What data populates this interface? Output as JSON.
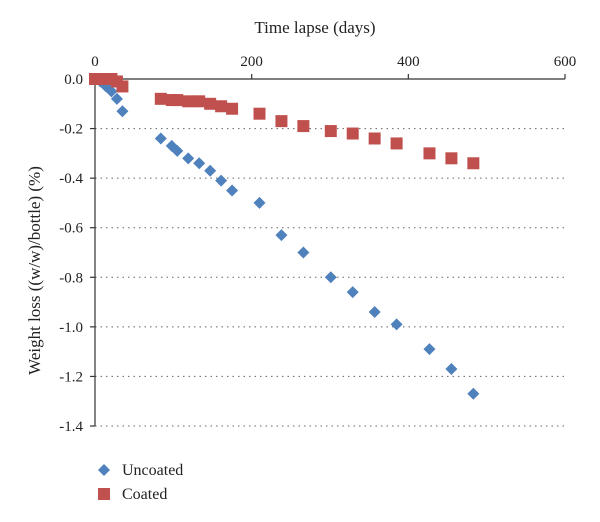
{
  "chart_data": {
    "type": "scatter",
    "xlabel": "Time lapse (days)",
    "ylabel": "Weight loss ((w/w)/bottle) (%)",
    "xlim": [
      0,
      600
    ],
    "ylim": [
      -1.4,
      0
    ],
    "x_ticks": [
      "0",
      "200",
      "400",
      "600"
    ],
    "y_ticks": [
      "0.0",
      "-0.2",
      "-0.4",
      "-0.6",
      "-0.8",
      "-1.0",
      "-1.2",
      "-1.4"
    ],
    "x_axis_position": "top",
    "grid": "horizontal dotted",
    "legend_position": "bottom-left",
    "series": [
      {
        "name": "Uncoated",
        "marker": "diamond",
        "color": "#4f81bd",
        "points": [
          [
            0,
            0.0
          ],
          [
            7,
            -0.01
          ],
          [
            14,
            -0.03
          ],
          [
            21,
            -0.05
          ],
          [
            28,
            -0.08
          ],
          [
            35,
            -0.13
          ],
          [
            84,
            -0.24
          ],
          [
            98,
            -0.27
          ],
          [
            105,
            -0.29
          ],
          [
            119,
            -0.32
          ],
          [
            133,
            -0.34
          ],
          [
            147,
            -0.37
          ],
          [
            161,
            -0.41
          ],
          [
            175,
            -0.45
          ],
          [
            210,
            -0.5
          ],
          [
            238,
            -0.63
          ],
          [
            266,
            -0.7
          ],
          [
            301,
            -0.8
          ],
          [
            329,
            -0.86
          ],
          [
            357,
            -0.94
          ],
          [
            385,
            -0.99
          ],
          [
            427,
            -1.09
          ],
          [
            455,
            -1.17
          ],
          [
            483,
            -1.27
          ]
        ]
      },
      {
        "name": "Coated",
        "marker": "square",
        "color": "#c0504d",
        "points": [
          [
            0,
            0.0
          ],
          [
            7,
            0.0
          ],
          [
            21,
            0.0
          ],
          [
            28,
            -0.01
          ],
          [
            35,
            -0.03
          ],
          [
            84,
            -0.08
          ],
          [
            98,
            -0.085
          ],
          [
            105,
            -0.085
          ],
          [
            119,
            -0.09
          ],
          [
            133,
            -0.09
          ],
          [
            147,
            -0.1
          ],
          [
            161,
            -0.11
          ],
          [
            175,
            -0.12
          ],
          [
            210,
            -0.14
          ],
          [
            238,
            -0.17
          ],
          [
            266,
            -0.19
          ],
          [
            301,
            -0.21
          ],
          [
            329,
            -0.22
          ],
          [
            357,
            -0.24
          ],
          [
            385,
            -0.26
          ],
          [
            427,
            -0.3
          ],
          [
            455,
            -0.32
          ],
          [
            483,
            -0.34
          ]
        ]
      }
    ]
  }
}
